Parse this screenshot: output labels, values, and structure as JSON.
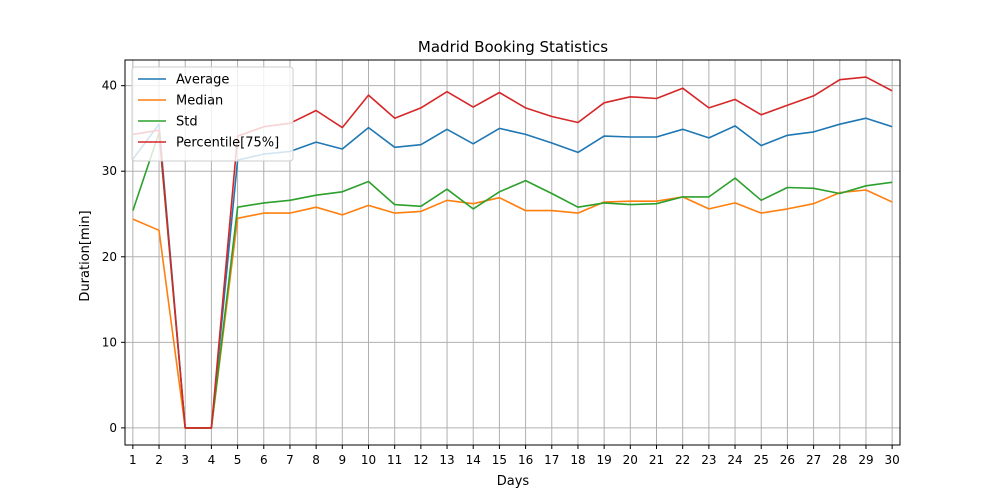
{
  "chart_data": {
    "type": "line",
    "title": "Madrid Booking Statistics",
    "xlabel": "Days",
    "ylabel": "Duration[min]",
    "x": [
      1,
      2,
      3,
      4,
      5,
      6,
      7,
      8,
      9,
      10,
      11,
      12,
      13,
      14,
      15,
      16,
      17,
      18,
      19,
      20,
      21,
      22,
      23,
      24,
      25,
      26,
      27,
      28,
      29,
      30
    ],
    "xlim": [
      0.7,
      30.3
    ],
    "ylim": [
      -2,
      43
    ],
    "yticks": [
      0,
      10,
      20,
      30,
      40
    ],
    "grid": true,
    "legend_position": "top-left",
    "series": [
      {
        "name": "Average",
        "color": "#1f77b4",
        "values": [
          31.4,
          35.5,
          0,
          0,
          31.3,
          32.0,
          32.3,
          33.4,
          32.6,
          35.1,
          32.8,
          33.1,
          34.9,
          33.2,
          35.0,
          34.3,
          33.3,
          32.2,
          34.1,
          34.0,
          34.0,
          34.9,
          33.9,
          35.3,
          33.0,
          34.2,
          34.6,
          35.5,
          36.2,
          35.2
        ]
      },
      {
        "name": "Median",
        "color": "#ff7f0e",
        "values": [
          24.4,
          23.1,
          0,
          0,
          24.5,
          25.1,
          25.1,
          25.8,
          24.9,
          26.0,
          25.1,
          25.3,
          26.6,
          26.2,
          26.9,
          25.4,
          25.4,
          25.1,
          26.4,
          26.5,
          26.5,
          27.0,
          25.6,
          26.3,
          25.1,
          25.6,
          26.2,
          27.5,
          27.8,
          26.4
        ]
      },
      {
        "name": "Std",
        "color": "#2ca02c",
        "values": [
          25.4,
          34.5,
          0,
          0,
          25.8,
          26.3,
          26.6,
          27.2,
          27.6,
          28.8,
          26.1,
          25.9,
          27.9,
          25.6,
          27.6,
          28.9,
          27.4,
          25.8,
          26.3,
          26.1,
          26.2,
          27.0,
          27.0,
          29.2,
          26.6,
          28.1,
          28.0,
          27.4,
          28.3,
          28.7
        ]
      },
      {
        "name": "Percentile[75%]",
        "color": "#d62728",
        "values": [
          34.3,
          34.8,
          0,
          0,
          34.1,
          35.2,
          35.6,
          37.1,
          35.1,
          38.9,
          36.2,
          37.4,
          39.3,
          37.5,
          39.2,
          37.4,
          36.4,
          35.7,
          38.0,
          38.7,
          38.5,
          39.7,
          37.4,
          38.4,
          36.6,
          37.7,
          38.8,
          40.7,
          41.0,
          39.4
        ]
      }
    ]
  }
}
